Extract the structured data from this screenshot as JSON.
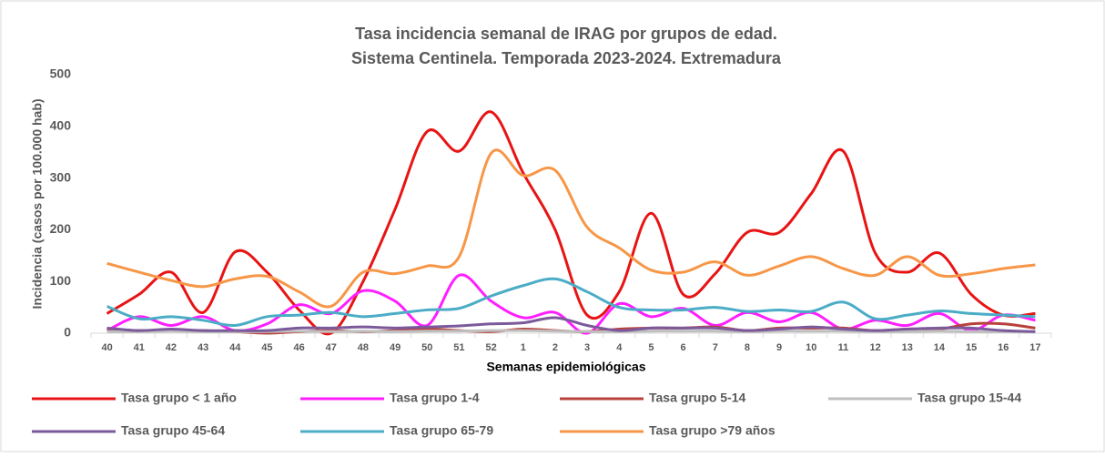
{
  "chart_data": {
    "type": "line",
    "title": "Tasa incidencia semanal de IRAG por grupos de edad.",
    "subtitle": "Sistema Centinela. Temporada 2023-2024. Extremadura",
    "x_label": "Semanas epidemiológicas",
    "y_label": "Incidencia (casos por 100.000 hab)",
    "categories": [
      "40",
      "41",
      "42",
      "43",
      "44",
      "45",
      "46",
      "47",
      "48",
      "49",
      "50",
      "51",
      "52",
      "1",
      "2",
      "3",
      "4",
      "5",
      "6",
      "7",
      "8",
      "9",
      "10",
      "11",
      "12",
      "13",
      "14",
      "15",
      "16",
      "17"
    ],
    "ylim": [
      0,
      500
    ],
    "yticks": [
      0,
      100,
      200,
      300,
      400,
      500
    ],
    "grid": false,
    "legend": "bottom",
    "series": [
      {
        "name": "Tasa grupo < 1 año",
        "color": "#e81414",
        "values": [
          38,
          75,
          118,
          40,
          157,
          118,
          45,
          0,
          100,
          240,
          390,
          352,
          428,
          310,
          200,
          35,
          80,
          232,
          75,
          115,
          195,
          195,
          270,
          352,
          155,
          118,
          155,
          75,
          35,
          38
        ]
      },
      {
        "name": "Tasa grupo 1-4",
        "color": "#ff1eff",
        "values": [
          5,
          32,
          15,
          32,
          5,
          18,
          55,
          38,
          82,
          62,
          15,
          112,
          62,
          30,
          40,
          0,
          57,
          32,
          48,
          15,
          40,
          22,
          40,
          8,
          25,
          15,
          38,
          5,
          35,
          25
        ]
      },
      {
        "name": "Tasa grupo 5-14",
        "color": "#b9413b",
        "values": [
          8,
          5,
          6,
          5,
          3,
          0,
          3,
          5,
          3,
          5,
          8,
          5,
          3,
          8,
          5,
          3,
          8,
          10,
          10,
          12,
          5,
          10,
          10,
          10,
          5,
          8,
          8,
          18,
          18,
          10
        ]
      },
      {
        "name": "Tasa grupo 15-44",
        "color": "#bfbfbf",
        "values": [
          3,
          3,
          4,
          3,
          3,
          3,
          4,
          3,
          4,
          3,
          4,
          4,
          5,
          5,
          4,
          3,
          3,
          4,
          4,
          4,
          3,
          4,
          4,
          4,
          3,
          3,
          4,
          3,
          3,
          3
        ]
      },
      {
        "name": "Tasa grupo 45-64",
        "color": "#7b5a9b",
        "values": [
          10,
          5,
          8,
          5,
          5,
          5,
          10,
          10,
          12,
          10,
          12,
          14,
          18,
          20,
          30,
          15,
          5,
          10,
          10,
          10,
          5,
          8,
          12,
          8,
          5,
          8,
          10,
          10,
          5,
          3
        ]
      },
      {
        "name": "Tasa grupo 65-79",
        "color": "#4bacc6",
        "values": [
          52,
          28,
          32,
          25,
          15,
          32,
          35,
          40,
          32,
          38,
          45,
          48,
          72,
          92,
          105,
          80,
          50,
          45,
          45,
          50,
          42,
          45,
          42,
          60,
          28,
          35,
          43,
          38,
          35,
          32
        ]
      },
      {
        "name": "Tasa grupo >79 años",
        "color": "#f79646",
        "values": [
          135,
          118,
          102,
          90,
          105,
          110,
          80,
          52,
          118,
          115,
          130,
          148,
          348,
          305,
          315,
          205,
          165,
          122,
          118,
          138,
          112,
          130,
          148,
          125,
          112,
          148,
          112,
          115,
          125,
          132
        ]
      }
    ]
  }
}
